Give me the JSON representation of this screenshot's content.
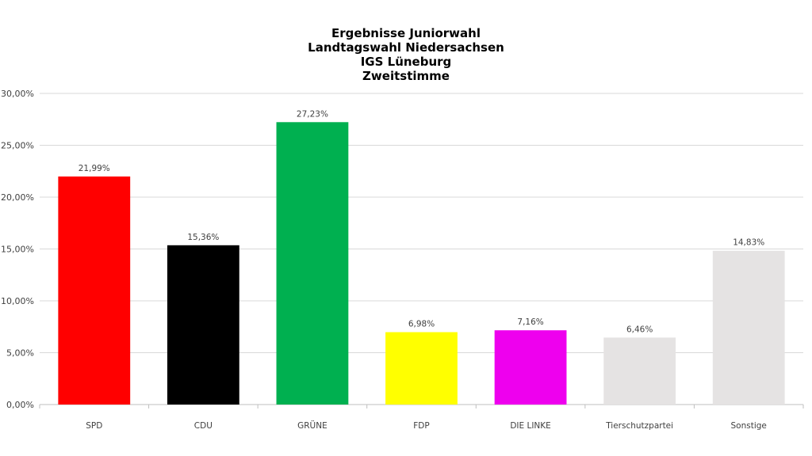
{
  "chart_data": {
    "type": "bar",
    "title_lines": [
      "Ergebnisse Juniorwahl",
      "Landtagswahl Niedersachsen",
      "IGS Lüneburg",
      "Zweitstimme"
    ],
    "categories": [
      "SPD",
      "CDU",
      "GRÜNE",
      "FDP",
      "DIE LINKE",
      "Tierschutzpartei",
      "Sonstige"
    ],
    "values": [
      21.99,
      15.36,
      27.23,
      6.98,
      7.16,
      6.46,
      14.83
    ],
    "value_labels": [
      "21,99%",
      "15,36%",
      "27,23%",
      "6,98%",
      "7,16%",
      "6,46%",
      "14,83%"
    ],
    "colors": [
      "#ff0000",
      "#000000",
      "#00b050",
      "#ffff00",
      "#ee00ee",
      "#e5e3e3",
      "#e5e3e3"
    ],
    "y_ticks": [
      0,
      5,
      10,
      15,
      20,
      25,
      30
    ],
    "y_tick_labels": [
      "0,00%",
      "5,00%",
      "10,00%",
      "15,00%",
      "20,00%",
      "25,00%",
      "30,00%"
    ],
    "ylim": [
      0,
      30
    ],
    "grid": true,
    "legend": false,
    "xlabel": "",
    "ylabel": ""
  }
}
